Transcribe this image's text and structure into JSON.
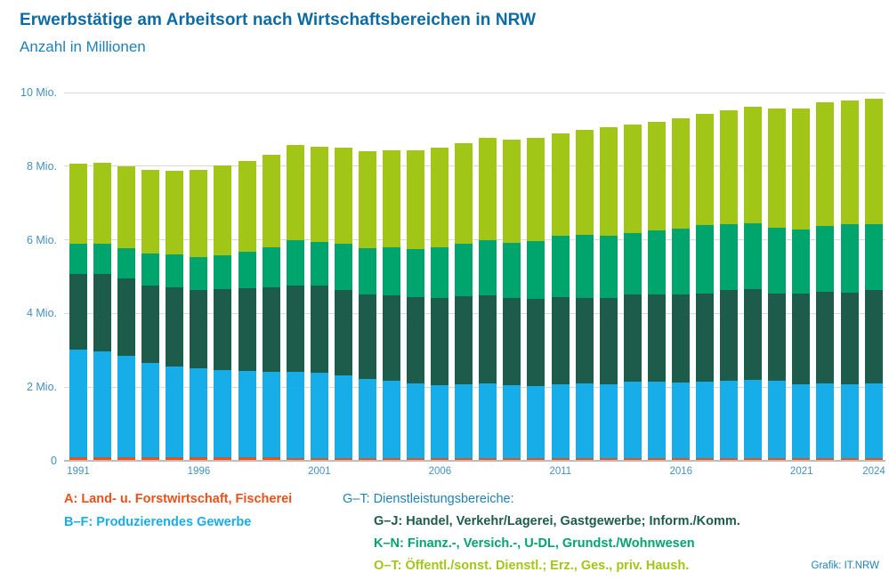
{
  "header": {
    "title": "Erwerbstätige am Arbeitsort nach Wirtschaftsbereichen in NRW",
    "subtitle": "Anzahl in Millionen"
  },
  "footer": {
    "credit": "Grafik: IT.NRW"
  },
  "colors": {
    "title_blue": "#0d6ba4",
    "subtitle_blue": "#2082b4",
    "axis_label_blue": "#4490bd",
    "gridline_gray": "#d9d9d9",
    "baseline_gray": "#bdbdbd",
    "sector_a_orange": "#e8521a",
    "sector_bf_blue": "#17ade8",
    "sector_gj_darkgreen": "#1d5b4b",
    "sector_kn_green": "#00a46d",
    "sector_ot_lime": "#a2c617"
  },
  "legend": {
    "left": [
      {
        "key": "A",
        "label": "A: Land- u. Forstwirtschaft, Fischerei",
        "color": "#e8521a"
      },
      {
        "key": "BF",
        "label": "B–F: Produzierendes Gewerbe",
        "color": "#17ade8"
      }
    ],
    "right": {
      "header": {
        "label": "G–T: Dienstleistungsbereiche:",
        "color": "#2082b4"
      },
      "items": [
        {
          "key": "GJ",
          "label": "G–J: Handel, Verkehr/Lagerei, Gastgewerbe; Inform./Komm.",
          "color": "#1d5b4b"
        },
        {
          "key": "KN",
          "label": "K–N: Finanz.-, Versich.-, U-DL, Grundst./Wohnwesen",
          "color": "#00a46d"
        },
        {
          "key": "OT",
          "label": "O–T: Öffentl./sonst. Dienstl.; Erz., Ges., priv. Haush.",
          "color": "#a2c617"
        }
      ]
    }
  },
  "chart_data": {
    "type": "bar",
    "stacked": true,
    "title": "Erwerbstätige am Arbeitsort nach Wirtschaftsbereichen in NRW",
    "subtitle": "Anzahl in Millionen",
    "unit": "Mio.",
    "ylim": [
      0,
      10
    ],
    "grid": true,
    "categories": [
      1991,
      1992,
      1993,
      1994,
      1995,
      1996,
      1997,
      1998,
      1999,
      2000,
      2001,
      2002,
      2003,
      2004,
      2005,
      2006,
      2007,
      2008,
      2009,
      2010,
      2011,
      2012,
      2013,
      2014,
      2015,
      2016,
      2017,
      2018,
      2019,
      2020,
      2021,
      2022,
      2023,
      2024
    ],
    "y_ticks": [
      {
        "label": "10 Mio.",
        "value": 10
      },
      {
        "label": "8 Mio.",
        "value": 8
      },
      {
        "label": "6 Mio.",
        "value": 6
      },
      {
        "label": "4 Mio.",
        "value": 4
      },
      {
        "label": "2 Mio.",
        "value": 2
      },
      {
        "label": "0",
        "value": 0
      }
    ],
    "x_ticks": [
      {
        "label": "1991",
        "index": 0
      },
      {
        "label": "1996",
        "index": 5
      },
      {
        "label": "2001",
        "index": 10
      },
      {
        "label": "2006",
        "index": 15
      },
      {
        "label": "2011",
        "index": 20
      },
      {
        "label": "2016",
        "index": 25
      },
      {
        "label": "2021",
        "index": 30
      },
      {
        "label": "2024",
        "index": 33
      }
    ],
    "series": [
      {
        "key": "A",
        "name": "A: Land- u. Forstwirtschaft, Fischerei",
        "color": "#e8521a",
        "values": [
          0.1,
          0.1,
          0.1,
          0.1,
          0.1,
          0.09,
          0.09,
          0.09,
          0.09,
          0.08,
          0.08,
          0.08,
          0.08,
          0.08,
          0.07,
          0.07,
          0.07,
          0.07,
          0.07,
          0.07,
          0.07,
          0.07,
          0.07,
          0.07,
          0.08,
          0.07,
          0.07,
          0.07,
          0.07,
          0.07,
          0.07,
          0.07,
          0.07,
          0.07
        ]
      },
      {
        "key": "BF",
        "name": "B–F: Produzierendes Gewerbe",
        "color": "#17ade8",
        "values": [
          2.93,
          2.88,
          2.75,
          2.57,
          2.46,
          2.42,
          2.38,
          2.35,
          2.33,
          2.34,
          2.31,
          2.23,
          2.14,
          2.1,
          2.04,
          1.99,
          2.0,
          2.03,
          1.99,
          1.96,
          2.0,
          2.03,
          2.02,
          2.07,
          2.06,
          2.05,
          2.07,
          2.11,
          2.12,
          2.11,
          2.0,
          2.03,
          2.0,
          2.03
        ]
      },
      {
        "key": "GJ",
        "name": "G–J: Handel, Verkehr/Lagerei, Gastgewerbe; Inform./Komm.",
        "color": "#1d5b4b",
        "values": [
          2.05,
          2.1,
          2.1,
          2.09,
          2.16,
          2.14,
          2.2,
          2.25,
          2.29,
          2.34,
          2.36,
          2.33,
          2.3,
          2.31,
          2.33,
          2.36,
          2.4,
          2.39,
          2.36,
          2.38,
          2.37,
          2.32,
          2.34,
          2.37,
          2.37,
          2.4,
          2.41,
          2.45,
          2.48,
          2.37,
          2.48,
          2.49,
          2.49,
          2.53
        ]
      },
      {
        "key": "KN",
        "name": "K–N: Finanz.-, Versich.-, U-DL, Grundst./Wohnwesen",
        "color": "#00a46d",
        "values": [
          0.81,
          0.82,
          0.83,
          0.88,
          0.88,
          0.89,
          0.9,
          0.99,
          1.1,
          1.23,
          1.2,
          1.25,
          1.25,
          1.32,
          1.32,
          1.37,
          1.42,
          1.5,
          1.51,
          1.56,
          1.67,
          1.71,
          1.68,
          1.68,
          1.74,
          1.79,
          1.86,
          1.8,
          1.78,
          1.78,
          1.74,
          1.79,
          1.86,
          1.8
        ]
      },
      {
        "key": "OT",
        "name": "O–T: Öffentl./sonst. Dienstl.; Erz., Ges., priv. Haush.",
        "color": "#a2c617",
        "values": [
          2.17,
          2.2,
          2.23,
          2.27,
          2.29,
          2.36,
          2.44,
          2.46,
          2.51,
          2.59,
          2.59,
          2.61,
          2.64,
          2.63,
          2.66,
          2.72,
          2.73,
          2.78,
          2.79,
          2.79,
          2.77,
          2.87,
          2.94,
          2.93,
          2.95,
          2.99,
          3.0,
          3.08,
          3.17,
          3.24,
          3.28,
          3.35,
          3.36,
          3.4
        ]
      }
    ]
  }
}
